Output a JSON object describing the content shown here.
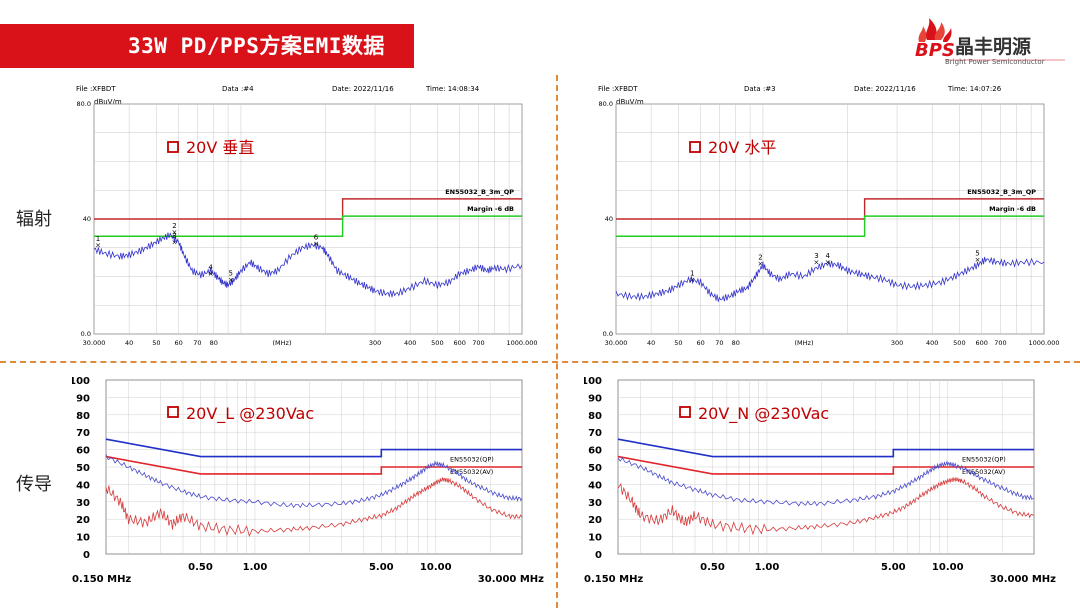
{
  "banner": {
    "title": "33W PD/PPS方案EMI数据"
  },
  "logo": {
    "mark": "BPS",
    "name_cn": "晶丰明源",
    "name_en": "Bright Power Semiconductor"
  },
  "sections": {
    "radiation": "辐射",
    "conduction": "传导"
  },
  "colors": {
    "banner": "#d9121a",
    "limit": "#c0282d",
    "margin": "#22cc22",
    "trace": "#3333cc",
    "qp_limit": "#1f2fc8",
    "av_limit": "#e0262c",
    "qp_trace": "#4a4acc",
    "av_trace": "#d63b3b",
    "divider": "#e08a3a"
  },
  "chart_data": [
    {
      "type": "line",
      "header": {
        "file": "File :XFBDT",
        "data": "Data :#4",
        "date": "Date: 2022/11/16",
        "time": "Time: 14:08:34"
      },
      "ylabel": "dBuV/m",
      "annotation": "20V  垂直",
      "xlabel": "(MHz)",
      "x_scale": "log",
      "xlim": [
        30,
        1000
      ],
      "ylim": [
        0,
        80
      ],
      "x_ticks": [
        "30.000",
        "40",
        "50",
        "60",
        "70",
        "80",
        "300",
        "400",
        "500",
        "600",
        "700",
        "1000.000"
      ],
      "x_tick_values": [
        30,
        40,
        50,
        60,
        70,
        80,
        300,
        400,
        500,
        600,
        700,
        1000
      ],
      "y_ticks": [
        "80.0",
        "40",
        "0.0"
      ],
      "y_tick_values": [
        80,
        40,
        0
      ],
      "limit_label": "EN55032_B_3m_QP",
      "margin_label": "Margin -6 dB",
      "limit_line": [
        [
          30,
          40
        ],
        [
          230,
          40
        ],
        [
          230,
          47
        ],
        [
          1000,
          47
        ]
      ],
      "margin_line": [
        [
          30,
          34
        ],
        [
          230,
          34
        ],
        [
          230,
          41
        ],
        [
          1000,
          41
        ]
      ],
      "series": [
        {
          "values": [
            [
              30,
              29.5
            ],
            [
              33,
              28
            ],
            [
              37,
              27
            ],
            [
              40,
              27.5
            ],
            [
              44,
              29
            ],
            [
              48,
              31
            ],
            [
              52,
              33
            ],
            [
              56,
              34.5
            ],
            [
              60,
              32
            ],
            [
              63,
              27
            ],
            [
              67,
              22
            ],
            [
              72,
              20.5
            ],
            [
              78,
              22
            ],
            [
              82,
              20
            ],
            [
              86,
              18
            ],
            [
              90,
              17
            ],
            [
              95,
              19
            ],
            [
              100,
              22
            ],
            [
              108,
              25
            ],
            [
              115,
              23
            ],
            [
              125,
              21
            ],
            [
              135,
              22
            ],
            [
              150,
              27
            ],
            [
              165,
              30
            ],
            [
              180,
              31
            ],
            [
              195,
              30
            ],
            [
              205,
              27
            ],
            [
              220,
              22
            ],
            [
              240,
              20
            ],
            [
              260,
              18
            ],
            [
              280,
              16.5
            ],
            [
              300,
              15
            ],
            [
              330,
              14
            ],
            [
              360,
              14
            ],
            [
              400,
              16
            ],
            [
              450,
              18.5
            ],
            [
              500,
              17
            ],
            [
              550,
              18
            ],
            [
              600,
              21
            ],
            [
              650,
              22
            ],
            [
              700,
              23.5
            ],
            [
              750,
              22
            ],
            [
              800,
              23
            ],
            [
              880,
              22.5
            ],
            [
              1000,
              24
            ]
          ]
        }
      ],
      "markers": [
        {
          "label": "1",
          "x": 31,
          "y": 31
        },
        {
          "label": "2",
          "x": 58,
          "y": 35.5
        },
        {
          "label": "3",
          "x": 58,
          "y": 32
        },
        {
          "label": "4",
          "x": 78,
          "y": 21
        },
        {
          "label": "5",
          "x": 92,
          "y": 19
        },
        {
          "label": "6",
          "x": 185,
          "y": 31.5
        }
      ]
    },
    {
      "type": "line",
      "header": {
        "file": "File :XFBDT",
        "data": "Data :#3",
        "date": "Date: 2022/11/16",
        "time": "Time: 14:07:26"
      },
      "ylabel": "dBuV/m",
      "annotation": "20V  水平",
      "xlabel": "(MHz)",
      "x_scale": "log",
      "xlim": [
        30,
        1000
      ],
      "ylim": [
        0,
        80
      ],
      "x_ticks": [
        "30.000",
        "40",
        "50",
        "60",
        "70",
        "80",
        "300",
        "400",
        "500",
        "600",
        "700",
        "1000.000"
      ],
      "x_tick_values": [
        30,
        40,
        50,
        60,
        70,
        80,
        300,
        400,
        500,
        600,
        700,
        1000
      ],
      "y_ticks": [
        "80.0",
        "40",
        "0.0"
      ],
      "y_tick_values": [
        80,
        40,
        0
      ],
      "limit_label": "EN55032_B_3m_QP",
      "margin_label": "Margin -6 dB",
      "limit_line": [
        [
          30,
          40
        ],
        [
          230,
          40
        ],
        [
          230,
          47
        ],
        [
          1000,
          47
        ]
      ],
      "margin_line": [
        [
          30,
          34
        ],
        [
          230,
          34
        ],
        [
          230,
          41
        ],
        [
          1000,
          41
        ]
      ],
      "series": [
        {
          "values": [
            [
              30,
              14
            ],
            [
              34,
              13
            ],
            [
              38,
              13
            ],
            [
              42,
              14
            ],
            [
              46,
              15
            ],
            [
              50,
              17
            ],
            [
              55,
              19
            ],
            [
              60,
              18
            ],
            [
              65,
              14
            ],
            [
              70,
              12
            ],
            [
              76,
              13
            ],
            [
              82,
              15
            ],
            [
              88,
              16
            ],
            [
              94,
              20
            ],
            [
              100,
              24
            ],
            [
              106,
              21
            ],
            [
              115,
              19
            ],
            [
              125,
              21
            ],
            [
              140,
              20
            ],
            [
              155,
              23
            ],
            [
              170,
              24.5
            ],
            [
              185,
              24
            ],
            [
              200,
              22
            ],
            [
              220,
              21
            ],
            [
              240,
              20
            ],
            [
              270,
              19
            ],
            [
              300,
              17
            ],
            [
              340,
              16.5
            ],
            [
              380,
              17
            ],
            [
              430,
              18
            ],
            [
              480,
              20
            ],
            [
              530,
              22
            ],
            [
              580,
              24
            ],
            [
              620,
              26
            ],
            [
              680,
              25
            ],
            [
              750,
              24.5
            ],
            [
              850,
              25
            ],
            [
              1000,
              25
            ]
          ]
        }
      ],
      "markers": [
        {
          "label": "1",
          "x": 56,
          "y": 19
        },
        {
          "label": "2",
          "x": 98,
          "y": 24.5
        },
        {
          "label": "3",
          "x": 155,
          "y": 25
        },
        {
          "label": "4",
          "x": 170,
          "y": 25
        },
        {
          "label": "5",
          "x": 580,
          "y": 26
        }
      ]
    },
    {
      "type": "line",
      "annotation": "20V_L  @230Vac",
      "x_scale": "log",
      "xlim": [
        0.15,
        30
      ],
      "ylim": [
        0,
        100
      ],
      "x_ticks": [
        "0.150 MHz",
        "0.50",
        "1.00",
        "5.00",
        "10.00",
        "30.000 MHz"
      ],
      "x_tick_values": [
        0.15,
        0.5,
        1,
        5,
        10,
        30
      ],
      "y_ticks": [
        "100",
        "90",
        "80",
        "70",
        "60",
        "50",
        "40",
        "30",
        "20",
        "10",
        "0"
      ],
      "y_tick_values": [
        100,
        90,
        80,
        70,
        60,
        50,
        40,
        30,
        20,
        10,
        0
      ],
      "legend": [
        "EN55032(QP)",
        "EN55032(AV)"
      ],
      "qp_limit": [
        [
          0.15,
          66
        ],
        [
          0.5,
          56
        ],
        [
          5,
          56
        ],
        [
          5,
          60
        ],
        [
          30,
          60
        ]
      ],
      "av_limit": [
        [
          0.15,
          56
        ],
        [
          0.5,
          46
        ],
        [
          5,
          46
        ],
        [
          5,
          50
        ],
        [
          30,
          50
        ]
      ],
      "series": [
        {
          "name": "EN55032(QP)",
          "values": [
            [
              0.15,
              56
            ],
            [
              0.2,
              50
            ],
            [
              0.25,
              45
            ],
            [
              0.3,
              41
            ],
            [
              0.4,
              36
            ],
            [
              0.5,
              33
            ],
            [
              0.7,
              31
            ],
            [
              1,
              30
            ],
            [
              1.5,
              28
            ],
            [
              2,
              28
            ],
            [
              3,
              29
            ],
            [
              4,
              31
            ],
            [
              5,
              34
            ],
            [
              6,
              38
            ],
            [
              7,
              42
            ],
            [
              8,
              46
            ],
            [
              9,
              50
            ],
            [
              10,
              52
            ],
            [
              11,
              51
            ],
            [
              13,
              47
            ],
            [
              15,
              42
            ],
            [
              18,
              38
            ],
            [
              22,
              34
            ],
            [
              26,
              32
            ],
            [
              30,
              32
            ]
          ]
        },
        {
          "name": "EN55032(AV)",
          "values": [
            [
              0.15,
              38
            ],
            [
              0.18,
              30
            ],
            [
              0.2,
              20
            ],
            [
              0.25,
              18
            ],
            [
              0.3,
              24
            ],
            [
              0.35,
              17
            ],
            [
              0.4,
              22
            ],
            [
              0.5,
              16
            ],
            [
              0.7,
              14
            ],
            [
              1,
              13
            ],
            [
              1.5,
              14
            ],
            [
              2,
              15
            ],
            [
              3,
              17
            ],
            [
              4,
              20
            ],
            [
              5,
              22
            ],
            [
              6,
              26
            ],
            [
              7,
              31
            ],
            [
              8,
              35
            ],
            [
              9,
              38
            ],
            [
              10,
              41
            ],
            [
              11,
              43
            ],
            [
              12,
              42
            ],
            [
              14,
              38
            ],
            [
              16,
              33
            ],
            [
              20,
              26
            ],
            [
              25,
              22
            ],
            [
              30,
              21
            ]
          ]
        }
      ]
    },
    {
      "type": "line",
      "annotation": "20V_N  @230Vac",
      "x_scale": "log",
      "xlim": [
        0.15,
        30
      ],
      "ylim": [
        0,
        100
      ],
      "x_ticks": [
        "0.150 MHz",
        "0.50",
        "1.00",
        "5.00",
        "10.00",
        "30.000 MHz"
      ],
      "x_tick_values": [
        0.15,
        0.5,
        1,
        5,
        10,
        30
      ],
      "y_ticks": [
        "100",
        "90",
        "80",
        "70",
        "60",
        "50",
        "40",
        "30",
        "20",
        "10",
        "0"
      ],
      "y_tick_values": [
        100,
        90,
        80,
        70,
        60,
        50,
        40,
        30,
        20,
        10,
        0
      ],
      "legend": [
        "EN55032(QP)",
        "EN55032(AV)"
      ],
      "qp_limit": [
        [
          0.15,
          66
        ],
        [
          0.5,
          56
        ],
        [
          5,
          56
        ],
        [
          5,
          60
        ],
        [
          30,
          60
        ]
      ],
      "av_limit": [
        [
          0.15,
          56
        ],
        [
          0.5,
          46
        ],
        [
          5,
          46
        ],
        [
          5,
          50
        ],
        [
          30,
          50
        ]
      ],
      "series": [
        {
          "name": "EN55032(QP)",
          "values": [
            [
              0.15,
              55
            ],
            [
              0.2,
              50
            ],
            [
              0.25,
              45
            ],
            [
              0.3,
              41
            ],
            [
              0.4,
              37
            ],
            [
              0.5,
              34
            ],
            [
              0.7,
              31
            ],
            [
              1,
              30
            ],
            [
              1.5,
              29
            ],
            [
              2,
              29
            ],
            [
              3,
              31
            ],
            [
              4,
              33
            ],
            [
              5,
              36
            ],
            [
              6,
              40
            ],
            [
              7,
              44
            ],
            [
              8,
              48
            ],
            [
              9,
              51
            ],
            [
              10,
              52
            ],
            [
              11,
              51
            ],
            [
              13,
              48
            ],
            [
              15,
              44
            ],
            [
              18,
              40
            ],
            [
              22,
              36
            ],
            [
              26,
              33
            ],
            [
              30,
              32
            ]
          ]
        },
        {
          "name": "EN55032(AV)",
          "values": [
            [
              0.15,
              40
            ],
            [
              0.18,
              30
            ],
            [
              0.2,
              22
            ],
            [
              0.25,
              19
            ],
            [
              0.3,
              25
            ],
            [
              0.35,
              18
            ],
            [
              0.4,
              22
            ],
            [
              0.5,
              17
            ],
            [
              0.7,
              15
            ],
            [
              1,
              14
            ],
            [
              1.5,
              15
            ],
            [
              2,
              16
            ],
            [
              3,
              18
            ],
            [
              4,
              21
            ],
            [
              5,
              24
            ],
            [
              6,
              28
            ],
            [
              7,
              33
            ],
            [
              8,
              37
            ],
            [
              9,
              40
            ],
            [
              10,
              42
            ],
            [
              11,
              43
            ],
            [
              12,
              42
            ],
            [
              14,
              38
            ],
            [
              16,
              33
            ],
            [
              20,
              27
            ],
            [
              25,
              23
            ],
            [
              30,
              22
            ]
          ]
        }
      ]
    }
  ]
}
